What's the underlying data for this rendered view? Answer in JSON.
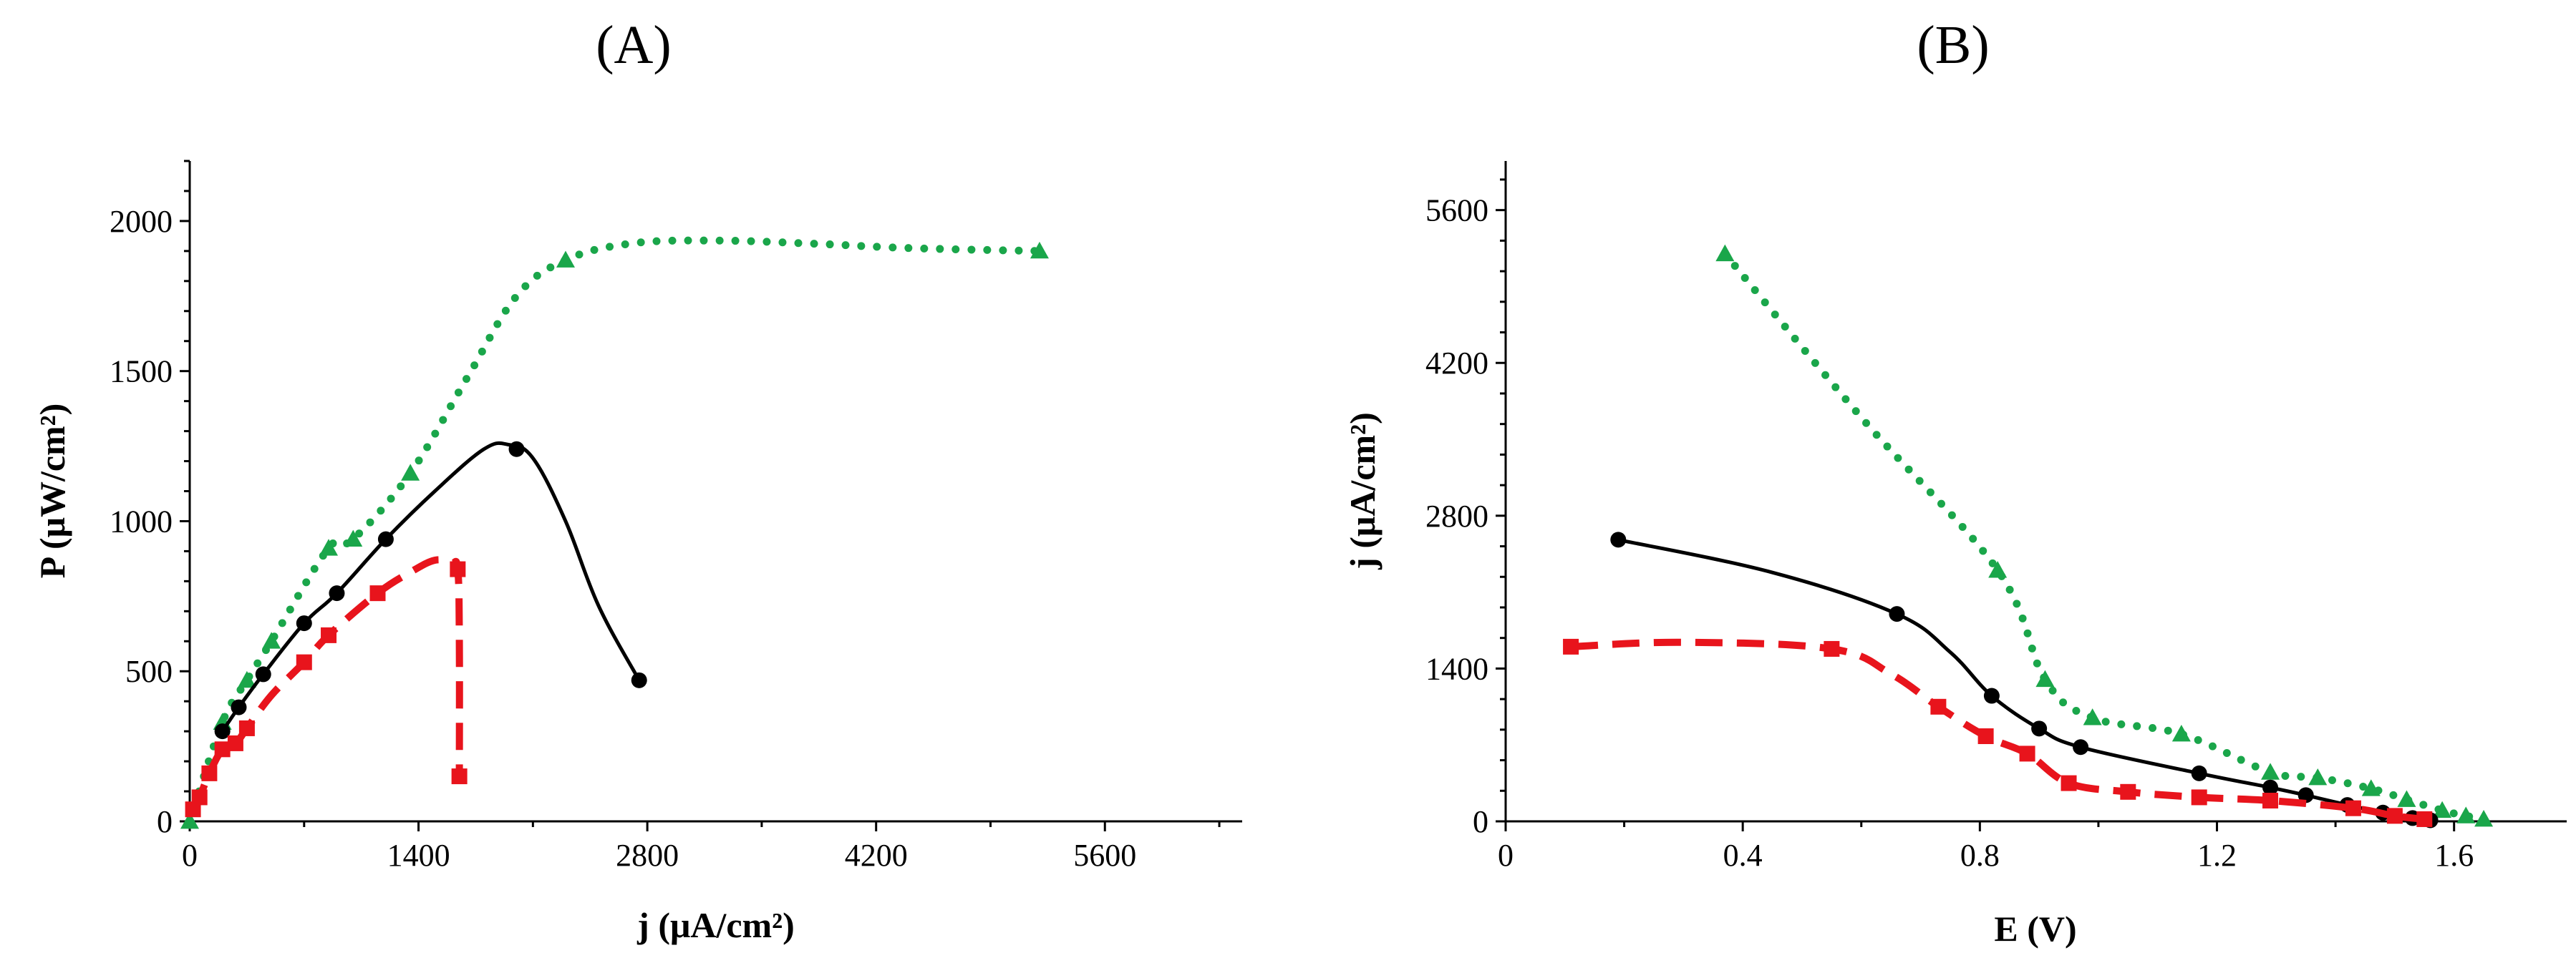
{
  "chart_data": [
    {
      "panel_label": "(A)",
      "type": "line",
      "xlabel": "j (μA/cm²)",
      "ylabel": "P (μW/cm²)",
      "xlim": [
        0,
        6440
      ],
      "ylim": [
        0,
        2200
      ],
      "x_ticks": [
        0,
        1400,
        2800,
        4200,
        5600
      ],
      "y_ticks": [
        0,
        500,
        1000,
        1500,
        2000
      ],
      "grid": false,
      "series": [
        {
          "color": "#1aa64a",
          "style": "dotted",
          "marker": "triangle",
          "points": [
            [
              0,
              0
            ],
            [
              200,
              330
            ],
            [
              350,
              470
            ],
            [
              500,
              600
            ],
            [
              850,
              910
            ],
            [
              1000,
              940
            ],
            [
              1350,
              1160
            ],
            [
              2300,
              1870
            ],
            [
              5200,
              1900
            ]
          ],
          "curve": [
            [
              0,
              0
            ],
            [
              200,
              330
            ],
            [
              350,
              470
            ],
            [
              500,
              600
            ],
            [
              850,
              910
            ],
            [
              1000,
              940
            ],
            [
              1350,
              1160
            ],
            [
              1700,
              1480
            ],
            [
              2000,
              1750
            ],
            [
              2300,
              1870
            ],
            [
              2700,
              1925
            ],
            [
              3200,
              1935
            ],
            [
              3800,
              1925
            ],
            [
              4400,
              1910
            ],
            [
              5200,
              1900
            ]
          ]
        },
        {
          "color": "#000000",
          "style": "solid",
          "marker": "circle",
          "points": [
            [
              200,
              300
            ],
            [
              300,
              380
            ],
            [
              450,
              490
            ],
            [
              700,
              660
            ],
            [
              900,
              760
            ],
            [
              1200,
              940
            ],
            [
              2000,
              1240
            ],
            [
              2750,
              470
            ]
          ],
          "curve": [
            [
              200,
              300
            ],
            [
              300,
              380
            ],
            [
              450,
              490
            ],
            [
              700,
              660
            ],
            [
              900,
              760
            ],
            [
              1200,
              940
            ],
            [
              1500,
              1100
            ],
            [
              1800,
              1240
            ],
            [
              1950,
              1255
            ],
            [
              2100,
              1210
            ],
            [
              2300,
              1000
            ],
            [
              2500,
              720
            ],
            [
              2750,
              470
            ]
          ]
        },
        {
          "color": "#e8141c",
          "style": "dashed",
          "marker": "square",
          "points": [
            [
              20,
              40
            ],
            [
              60,
              80
            ],
            [
              120,
              160
            ],
            [
              200,
              240
            ],
            [
              280,
              260
            ],
            [
              350,
              310
            ],
            [
              700,
              530
            ],
            [
              850,
              620
            ],
            [
              1150,
              760
            ],
            [
              1640,
              840
            ],
            [
              1650,
              150
            ]
          ],
          "curve": [
            [
              20,
              40
            ],
            [
              60,
              80
            ],
            [
              120,
              160
            ],
            [
              200,
              240
            ],
            [
              280,
              260
            ],
            [
              350,
              310
            ],
            [
              500,
              420
            ],
            [
              700,
              530
            ],
            [
              850,
              620
            ],
            [
              1150,
              760
            ],
            [
              1350,
              830
            ],
            [
              1500,
              870
            ],
            [
              1600,
              860
            ],
            [
              1640,
              840
            ],
            [
              1650,
              600
            ],
            [
              1650,
              150
            ]
          ]
        }
      ]
    },
    {
      "panel_label": "(B)",
      "type": "line",
      "xlabel": "E (V)",
      "ylabel": "j (μA/cm²)",
      "xlim": [
        0,
        1.79
      ],
      "ylim": [
        0,
        6050
      ],
      "x_ticks": [
        0,
        0.4,
        0.8,
        1.2,
        1.6
      ],
      "y_ticks": [
        0,
        1400,
        2800,
        4200,
        5600
      ],
      "grid": false,
      "series": [
        {
          "color": "#1aa64a",
          "style": "dotted",
          "marker": "triangle",
          "points": [
            [
              0.37,
              5200
            ],
            [
              0.83,
              2300
            ],
            [
              0.91,
              1300
            ],
            [
              0.99,
              950
            ],
            [
              1.14,
              800
            ],
            [
              1.29,
              450
            ],
            [
              1.37,
              400
            ],
            [
              1.46,
              300
            ],
            [
              1.52,
              200
            ],
            [
              1.58,
              100
            ],
            [
              1.62,
              50
            ],
            [
              1.65,
              20
            ]
          ],
          "curve": [
            [
              0.37,
              5200
            ],
            [
              0.6,
              3700
            ],
            [
              0.83,
              2300
            ],
            [
              0.91,
              1300
            ],
            [
              0.99,
              950
            ],
            [
              1.14,
              800
            ],
            [
              1.29,
              450
            ],
            [
              1.37,
              400
            ],
            [
              1.46,
              300
            ],
            [
              1.52,
              200
            ],
            [
              1.58,
              100
            ],
            [
              1.62,
              50
            ],
            [
              1.65,
              20
            ]
          ]
        },
        {
          "color": "#000000",
          "style": "solid",
          "marker": "circle",
          "points": [
            [
              0.19,
              2580
            ],
            [
              0.66,
              1900
            ],
            [
              0.82,
              1150
            ],
            [
              0.9,
              850
            ],
            [
              0.97,
              680
            ],
            [
              1.17,
              440
            ],
            [
              1.29,
              310
            ],
            [
              1.35,
              240
            ],
            [
              1.42,
              150
            ],
            [
              1.48,
              80
            ],
            [
              1.53,
              30
            ],
            [
              1.56,
              10
            ]
          ],
          "curve": [
            [
              0.19,
              2580
            ],
            [
              0.45,
              2280
            ],
            [
              0.66,
              1900
            ],
            [
              0.75,
              1550
            ],
            [
              0.82,
              1150
            ],
            [
              0.9,
              850
            ],
            [
              0.97,
              680
            ],
            [
              1.17,
              440
            ],
            [
              1.29,
              310
            ],
            [
              1.35,
              240
            ],
            [
              1.42,
              150
            ],
            [
              1.48,
              80
            ],
            [
              1.53,
              30
            ],
            [
              1.56,
              10
            ]
          ]
        },
        {
          "color": "#e8141c",
          "style": "dashed",
          "marker": "square",
          "points": [
            [
              0.11,
              1600
            ],
            [
              0.55,
              1580
            ],
            [
              0.73,
              1050
            ],
            [
              0.81,
              780
            ],
            [
              0.88,
              620
            ],
            [
              0.95,
              350
            ],
            [
              1.05,
              270
            ],
            [
              1.17,
              220
            ],
            [
              1.29,
              190
            ],
            [
              1.43,
              120
            ],
            [
              1.5,
              50
            ],
            [
              1.55,
              20
            ]
          ],
          "curve": [
            [
              0.11,
              1600
            ],
            [
              0.3,
              1640
            ],
            [
              0.55,
              1580
            ],
            [
              0.65,
              1350
            ],
            [
              0.73,
              1050
            ],
            [
              0.81,
              780
            ],
            [
              0.88,
              620
            ],
            [
              0.95,
              350
            ],
            [
              1.05,
              270
            ],
            [
              1.17,
              220
            ],
            [
              1.29,
              190
            ],
            [
              1.43,
              120
            ],
            [
              1.5,
              50
            ],
            [
              1.55,
              20
            ]
          ]
        }
      ]
    }
  ]
}
